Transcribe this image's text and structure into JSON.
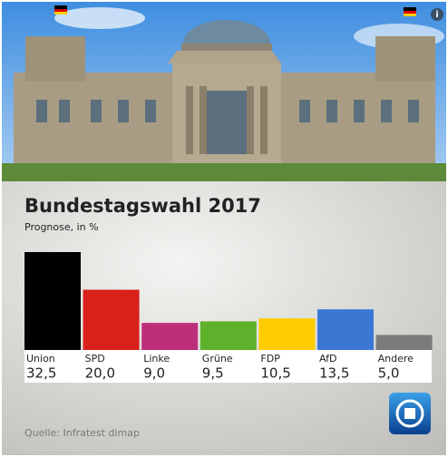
{
  "chart_data": {
    "type": "bar",
    "title": "Bundestagswahl 2017",
    "subtitle": "Prognose, in %",
    "categories": [
      "Union",
      "SPD",
      "Linke",
      "Grüne",
      "FDP",
      "AfD",
      "Andere"
    ],
    "values": [
      32.5,
      20.0,
      9.0,
      9.5,
      10.5,
      13.5,
      5.0
    ],
    "value_labels": [
      "32,5",
      "20,0",
      "9,0",
      "9,5",
      "10,5",
      "13,5",
      "5,0"
    ],
    "colors": [
      "#000000",
      "#d9211c",
      "#be2f7a",
      "#5fb02a",
      "#ffcc00",
      "#3a78d3",
      "#7b7b7b"
    ],
    "source": "Quelle: Infratest dimap"
  }
}
